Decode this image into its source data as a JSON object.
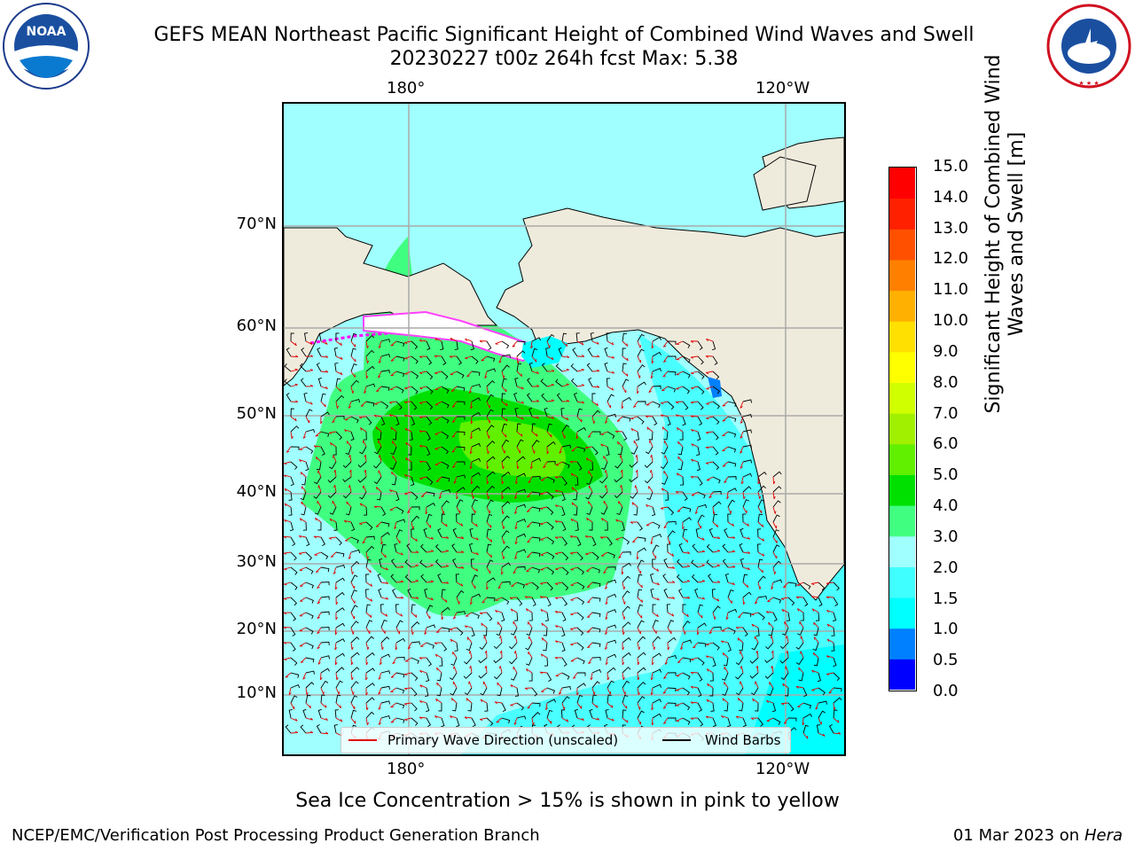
{
  "title": {
    "line1": "GEFS MEAN Northeast Pacific Significant Height of Combined Wind Waves and Swell",
    "line2": "20230227 t00z 264h fcst   Max: 5.38"
  },
  "logos": {
    "noaa": {
      "text": "NOAA",
      "ring_text": "NATIONAL OCEANIC AND ATMOSPHERIC ADMINISTRATION · U.S. DEPARTMENT OF COMMERCE"
    },
    "nws": {
      "ring_text": "NATIONAL WEATHER SERVICE"
    }
  },
  "map": {
    "lon_labels_top": [
      "180°",
      "120°W"
    ],
    "lon_labels_bottom": [
      "180°",
      "120°W"
    ],
    "lat_labels": [
      "70°N",
      "60°N",
      "50°N",
      "40°N",
      "30°N",
      "20°N",
      "10°N"
    ],
    "grid": true,
    "colors": {
      "land": "#efebdc",
      "ocean_low": "#a0ffff",
      "wind_barb": "#000000",
      "wave_dir": "#e00000"
    }
  },
  "legend": {
    "wave_direction": "Primary Wave Direction (unscaled)",
    "wind_barbs": "Wind Barbs"
  },
  "colorbar": {
    "label": "Significant Height of Combined Wind Waves and Swell [m]",
    "ticks": [
      "15.0",
      "14.0",
      "13.0",
      "12.0",
      "11.0",
      "10.0",
      "9.0",
      "8.0",
      "7.0",
      "6.0",
      "5.0",
      "4.0",
      "3.0",
      "2.0",
      "1.5",
      "1.0",
      "0.5",
      "0.0"
    ],
    "bands_bottom_to_top": [
      "#0000ff",
      "#0080ff",
      "#00ffff",
      "#40ffff",
      "#a0ffff",
      "#40ff80",
      "#00e000",
      "#60f000",
      "#a0f000",
      "#d0ff00",
      "#ffff00",
      "#ffe000",
      "#ffb000",
      "#ff8000",
      "#ff5000",
      "#ff2000",
      "#ff0000"
    ]
  },
  "footer": {
    "note": "Sea Ice Concentration > 15% is shown in pink to yellow",
    "left": "NCEP/EMC/Verification Post Processing Product Generation Branch",
    "right_date": "01 Mar 2023 on",
    "right_host": "Hera"
  }
}
